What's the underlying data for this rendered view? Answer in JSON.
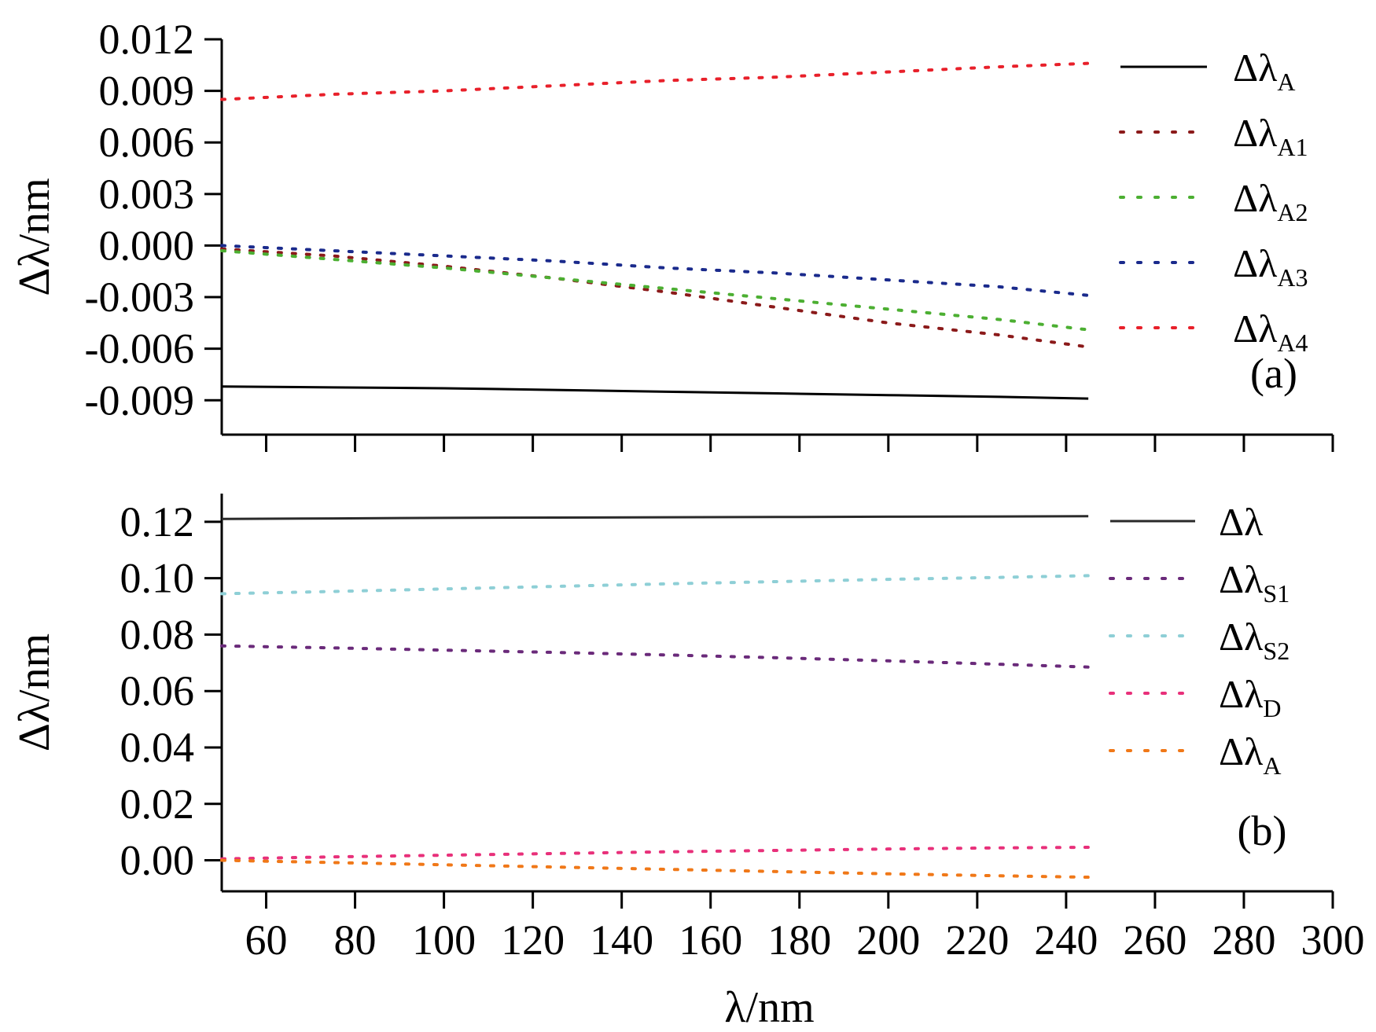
{
  "chart_data": [
    {
      "type": "line",
      "panel_label": "(a)",
      "ylabel_main": "Δλ",
      "ylabel_unit": "/nm",
      "xlim": [
        50,
        300
      ],
      "ylim": [
        -0.011,
        0.012
      ],
      "xticks": [
        60,
        80,
        100,
        120,
        140,
        160,
        180,
        200,
        220,
        240,
        260,
        280,
        300
      ],
      "yticks": [
        -0.009,
        -0.006,
        -0.003,
        0.0,
        0.003,
        0.006,
        0.009,
        0.012
      ],
      "ytick_labels": [
        "-0.009",
        "-0.006",
        "-0.003",
        "0.000",
        "0.003",
        "0.006",
        "0.009",
        "0.012"
      ],
      "legend_position": "right",
      "grid": false,
      "x": [
        50,
        75,
        100,
        125,
        150,
        175,
        200,
        225,
        245
      ],
      "series": [
        {
          "name": "Δλ",
          "sub": "A",
          "color": "#000000",
          "style": "solid",
          "values": [
            -0.0082,
            -0.00825,
            -0.0083,
            -0.0084,
            -0.0085,
            -0.0086,
            -0.0087,
            -0.0088,
            -0.0089
          ]
        },
        {
          "name": "Δλ",
          "sub": "A1",
          "color": "#8b1a1a",
          "style": "dotted",
          "values": [
            -0.0002,
            -0.0006,
            -0.0012,
            -0.0019,
            -0.0027,
            -0.0036,
            -0.0045,
            -0.0052,
            -0.0059
          ]
        },
        {
          "name": "Δλ",
          "sub": "A2",
          "color": "#4caf32",
          "style": "dotted",
          "values": [
            -0.0003,
            -0.0008,
            -0.0013,
            -0.0019,
            -0.0025,
            -0.0031,
            -0.0037,
            -0.0043,
            -0.0049
          ]
        },
        {
          "name": "Δλ",
          "sub": "A3",
          "color": "#1a2a8c",
          "style": "dotted",
          "values": [
            0.0,
            -0.0003,
            -0.0006,
            -0.0009,
            -0.0013,
            -0.0016,
            -0.002,
            -0.0024,
            -0.0029
          ]
        },
        {
          "name": "Δλ",
          "sub": "A4",
          "color": "#e8202a",
          "style": "dotted",
          "values": [
            0.0085,
            0.0088,
            0.009,
            0.0093,
            0.0096,
            0.0098,
            0.0101,
            0.0104,
            0.0106
          ]
        }
      ]
    },
    {
      "type": "line",
      "panel_label": "(b)",
      "ylabel_main": "Δλ",
      "ylabel_unit": "/nm",
      "xlabel_main": "λ",
      "xlabel_unit": "/nm",
      "xlim": [
        50,
        300
      ],
      "ylim": [
        -0.011,
        0.13
      ],
      "xticks": [
        60,
        80,
        100,
        120,
        140,
        160,
        180,
        200,
        220,
        240,
        260,
        280,
        300
      ],
      "yticks": [
        0.0,
        0.02,
        0.04,
        0.06,
        0.08,
        0.1,
        0.12
      ],
      "ytick_labels": [
        "0.00",
        "0.02",
        "0.04",
        "0.06",
        "0.08",
        "0.10",
        "0.12"
      ],
      "legend_position": "right",
      "grid": false,
      "x": [
        50,
        75,
        100,
        125,
        150,
        175,
        200,
        225,
        245
      ],
      "series": [
        {
          "name": "Δλ",
          "sub": "",
          "color": "#2a2a2a",
          "style": "solid",
          "values": [
            0.121,
            0.1212,
            0.1214,
            0.1215,
            0.1216,
            0.1217,
            0.1218,
            0.1219,
            0.122
          ]
        },
        {
          "name": "Δλ",
          "sub": "S1",
          "color": "#6a2a7a",
          "style": "dotted",
          "values": [
            0.076,
            0.0753,
            0.0745,
            0.0737,
            0.0728,
            0.0718,
            0.0707,
            0.0695,
            0.0685
          ]
        },
        {
          "name": "Δλ",
          "sub": "S2",
          "color": "#8ecfd6",
          "style": "dotted",
          "values": [
            0.0945,
            0.0953,
            0.0962,
            0.0971,
            0.098,
            0.0988,
            0.0996,
            0.1003,
            0.1009
          ]
        },
        {
          "name": "Δλ",
          "sub": "D",
          "color": "#e8307a",
          "style": "dotted",
          "values": [
            0.0005,
            0.0012,
            0.0018,
            0.0024,
            0.003,
            0.0035,
            0.004,
            0.0044,
            0.0046
          ]
        },
        {
          "name": "Δλ",
          "sub": "A",
          "color": "#f07818",
          "style": "dotted",
          "values": [
            0.0,
            -0.0008,
            -0.0016,
            -0.0024,
            -0.0032,
            -0.004,
            -0.0048,
            -0.0055,
            -0.006
          ]
        }
      ]
    }
  ]
}
